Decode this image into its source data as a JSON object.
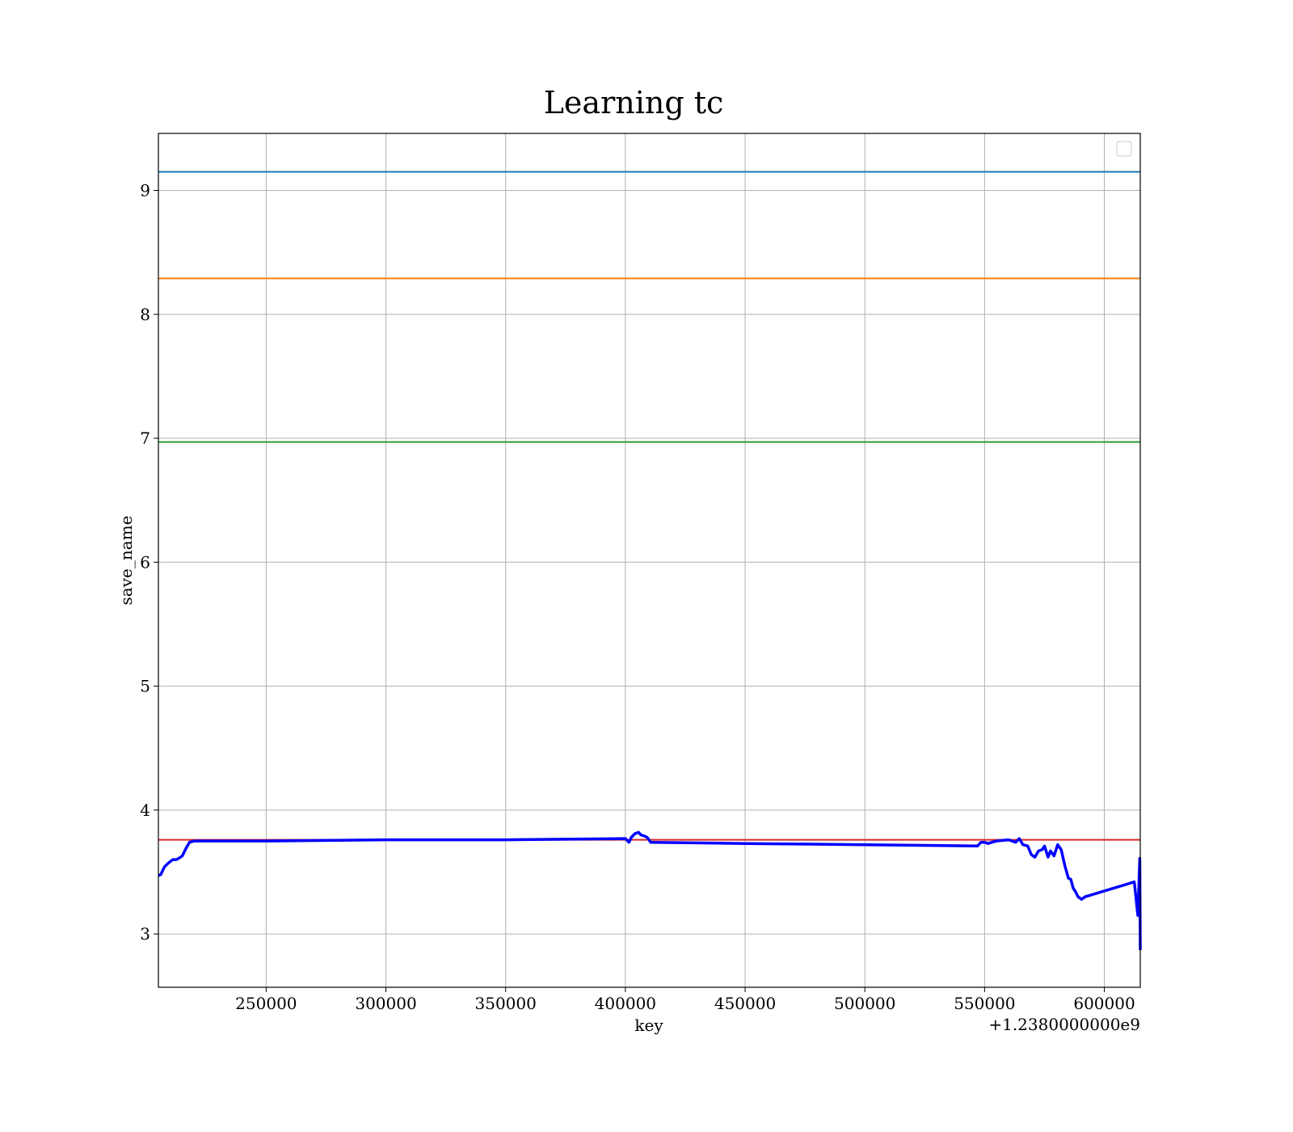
{
  "chart_data": {
    "type": "line",
    "title": "Learning tc",
    "xlabel": "key",
    "ylabel": "save_name",
    "x_offset_label": "+1.2380000000e9",
    "xlim": [
      205000,
      615000
    ],
    "ylim": [
      2.57,
      9.46
    ],
    "x_ticks": [
      250000,
      300000,
      350000,
      400000,
      450000,
      500000,
      550000,
      600000
    ],
    "x_tick_labels": [
      "250000",
      "300000",
      "350000",
      "400000",
      "450000",
      "500000",
      "550000",
      "600000"
    ],
    "y_ticks": [
      3,
      4,
      5,
      6,
      7,
      8,
      9
    ],
    "y_tick_labels": [
      "3",
      "4",
      "5",
      "6",
      "7",
      "8",
      "9"
    ],
    "grid": true,
    "legend": {
      "placement": "top-right",
      "entries": []
    },
    "hlines": [
      {
        "y": 9.15,
        "color": "#1f77b4"
      },
      {
        "y": 8.29,
        "color": "#ff7f0e"
      },
      {
        "y": 6.97,
        "color": "#2ca02c"
      },
      {
        "y": 3.76,
        "color": "#d62728"
      }
    ],
    "series": [
      {
        "color": "#0000ff",
        "x": [
          205000,
          206000,
          207500,
          209000,
          211000,
          212500,
          213500,
          215000,
          216500,
          218000,
          220000,
          250000,
          300000,
          350000,
          400000,
          401500,
          402500,
          404000,
          405500,
          406500,
          408000,
          409000,
          409500,
          410500,
          411000,
          450000,
          500000,
          547000,
          548500,
          550000,
          551500,
          553000,
          555000,
          560000,
          563000,
          564500,
          566000,
          568000,
          569500,
          571000,
          572500,
          574000,
          575000,
          576500,
          577500,
          579000,
          580500,
          582000,
          583500,
          585000,
          586000,
          587000,
          588000,
          589000,
          590500,
          592000,
          612500,
          614000,
          614800,
          615000
        ],
        "y": [
          3.47,
          3.48,
          3.54,
          3.57,
          3.6,
          3.6,
          3.61,
          3.63,
          3.69,
          3.74,
          3.75,
          3.75,
          3.76,
          3.76,
          3.77,
          3.74,
          3.78,
          3.81,
          3.82,
          3.8,
          3.79,
          3.78,
          3.77,
          3.74,
          3.74,
          3.73,
          3.72,
          3.71,
          3.74,
          3.74,
          3.73,
          3.74,
          3.75,
          3.76,
          3.74,
          3.77,
          3.72,
          3.71,
          3.64,
          3.62,
          3.67,
          3.68,
          3.71,
          3.62,
          3.67,
          3.63,
          3.72,
          3.68,
          3.55,
          3.45,
          3.44,
          3.37,
          3.34,
          3.3,
          3.28,
          3.3,
          3.42,
          3.15,
          3.61,
          2.87
        ]
      }
    ]
  }
}
